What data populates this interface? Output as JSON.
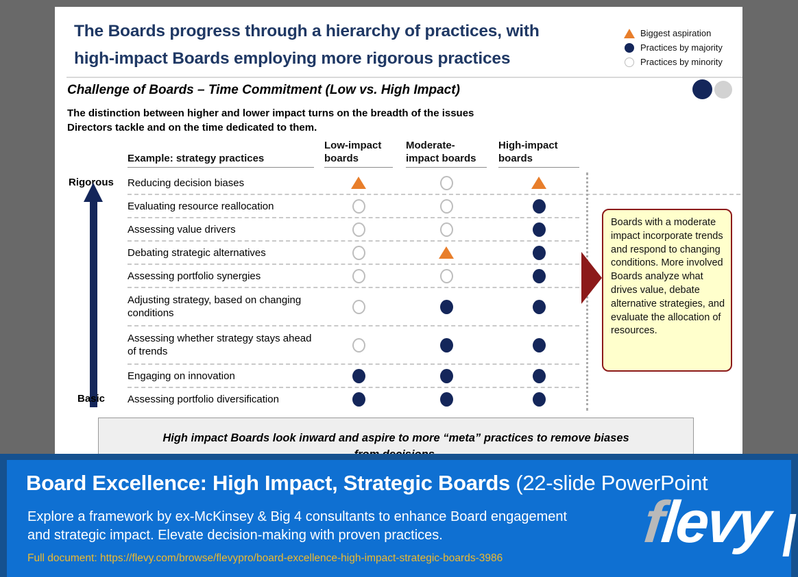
{
  "slide": {
    "title_line1": "The Boards progress through a hierarchy of practices, with",
    "title_line2": "high-impact Boards employing more rigorous practices",
    "legend": [
      {
        "marker": "triangle",
        "label": "Biggest aspiration"
      },
      {
        "marker": "filled",
        "label": "Practices by majority"
      },
      {
        "marker": "empty",
        "label": "Practices by minority"
      }
    ],
    "subtitle": "Challenge of Boards – Time Commitment (Low vs. High Impact)",
    "description_line1": "The distinction between higher and lower impact turns on the breadth of the issues",
    "description_line2": "Directors tackle and on the time dedicated to them.",
    "axis": {
      "top": "Rigorous",
      "bottom": "Basic"
    },
    "callout": "Boards with a moderate impact incorporate trends and respond to changing conditions. More involved Boards analyze what drives value, debate alternative strategies, and evaluate the allocation of resources.",
    "footer_note_line1": "High impact Boards look inward and aspire to more “meta” practices to remove biases",
    "footer_note_line2": "from decisions."
  },
  "chart_data": {
    "type": "table",
    "title": "Challenge of Boards – Time Commitment (Low vs. High Impact)",
    "row_header": "Example: strategy practices",
    "columns": [
      "Low-impact boards",
      "Moderate-impact boards",
      "High-impact boards"
    ],
    "marker_legend": {
      "triangle": "Biggest aspiration",
      "filled": "Practices by majority",
      "empty": "Practices by minority"
    },
    "axis": {
      "top": "Rigorous",
      "bottom": "Basic"
    },
    "rows": [
      {
        "label": "Reducing decision biases",
        "markers": [
          "triangle",
          "empty",
          "triangle"
        ]
      },
      {
        "label": "Evaluating resource reallocation",
        "markers": [
          "empty",
          "empty",
          "filled"
        ]
      },
      {
        "label": "Assessing value drivers",
        "markers": [
          "empty",
          "empty",
          "filled"
        ]
      },
      {
        "label": "Debating strategic alternatives",
        "markers": [
          "empty",
          "triangle",
          "filled"
        ]
      },
      {
        "label": "Assessing portfolio synergies",
        "markers": [
          "empty",
          "empty",
          "filled"
        ]
      },
      {
        "label": "Adjusting strategy, based on changing conditions",
        "markers": [
          "empty",
          "filled",
          "filled"
        ]
      },
      {
        "label": "Assessing whether strategy stays ahead of trends",
        "markers": [
          "empty",
          "filled",
          "filled"
        ]
      },
      {
        "label": "Engaging on innovation",
        "markers": [
          "filled",
          "filled",
          "filled"
        ]
      },
      {
        "label": "Assessing portfolio diversification",
        "markers": [
          "filled",
          "filled",
          "filled"
        ]
      }
    ]
  },
  "banner": {
    "title_bold": "Board Excellence: High Impact, Strategic Boards",
    "title_rest": " (22-slide PowerPoint",
    "description_line1": "Explore a framework by ex-McKinsey & Big 4 consultants to enhance Board engagement",
    "description_line2": "and strategic impact. Elevate decision-making with proven practices.",
    "full_document": "Full document: https://flevy.com/browse/flevypro/board-excellence-high-impact-strategic-boards-3986",
    "logo_f": "f",
    "logo_rest": "levy"
  },
  "colors": {
    "navy": "#1F3864",
    "marker_navy": "#14265A",
    "orange": "#E87E2B",
    "dark_red": "#8C1A1A",
    "callout_bg": "#FFFFCC",
    "banner_blue": "#0F70D2",
    "banner_border": "#15518F",
    "gold": "#EDBA2F",
    "page_gray": "#696969"
  }
}
